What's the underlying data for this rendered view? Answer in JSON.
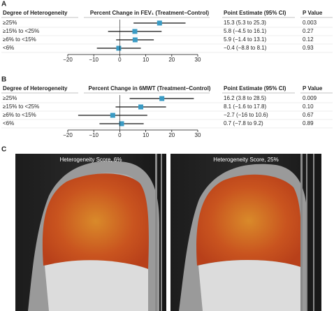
{
  "chart_data": [
    {
      "type": "forest",
      "panel": "A",
      "category_label": "Degree of Heterogeneity",
      "title": "Percent Change in FEV₁ (Treatment−Control)",
      "estimate_label": "Point Estimate (95% CI)",
      "p_label": "P Value",
      "categories": [
        "≥25%",
        "≥15% to <25%",
        "≥6% to <15%",
        "<6%"
      ],
      "values": [
        15.3,
        5.8,
        5.9,
        -0.4
      ],
      "lower": [
        5.3,
        -4.5,
        -1.4,
        -8.8
      ],
      "upper": [
        25.3,
        16.1,
        13.1,
        8.1
      ],
      "value_labels": [
        "15.3 (5.3 to 25.3)",
        "5.8 (−4.5 to 16.1)",
        "5.9 (−1.4 to 13.1)",
        "−0.4 (−8.8 to 8.1)"
      ],
      "p_values": [
        "0.003",
        "0.27",
        "0.12",
        "0.93"
      ],
      "color": "#3a9bc4",
      "xlim": [
        -20,
        30
      ],
      "xticks": [
        {
          "value": -20,
          "label": "−20"
        },
        {
          "value": -10,
          "label": "−10"
        },
        0,
        10,
        20,
        30
      ]
    },
    {
      "type": "forest",
      "panel": "B",
      "category_label": "Degree of Heterogeneity",
      "title": "Percent Change in 6MWT (Treatment−Control)",
      "estimate_label": "Point Estimate (95% CI)",
      "p_label": "P Value",
      "categories": [
        "≥25%",
        "≥15% to <25%",
        "≥6% to <15%",
        "<6%"
      ],
      "values": [
        16.2,
        8.1,
        -2.7,
        0.7
      ],
      "lower": [
        3.8,
        -1.6,
        -16,
        -7.8
      ],
      "upper": [
        28.5,
        17.8,
        10.6,
        9.2
      ],
      "value_labels": [
        "16.2 (3.8 to 28.5)",
        "8.1 (−1.6 to 17.8)",
        "−2.7 (−16 to 10.6)",
        "0.7 (−7.8 to 9.2)"
      ],
      "p_values": [
        "0.009",
        "0.10",
        "0.67",
        "0.89"
      ],
      "color": "#3a9bc4",
      "xlim": [
        -20,
        30
      ],
      "xticks": [
        {
          "value": -20,
          "label": "−20"
        },
        {
          "value": -10,
          "label": "−10"
        },
        0,
        10,
        20,
        30
      ]
    }
  ],
  "panel_c": {
    "label": "C",
    "captions": [
      "Heterogeneity Score, 6%",
      "Heterogeneity Score, 25%"
    ]
  }
}
